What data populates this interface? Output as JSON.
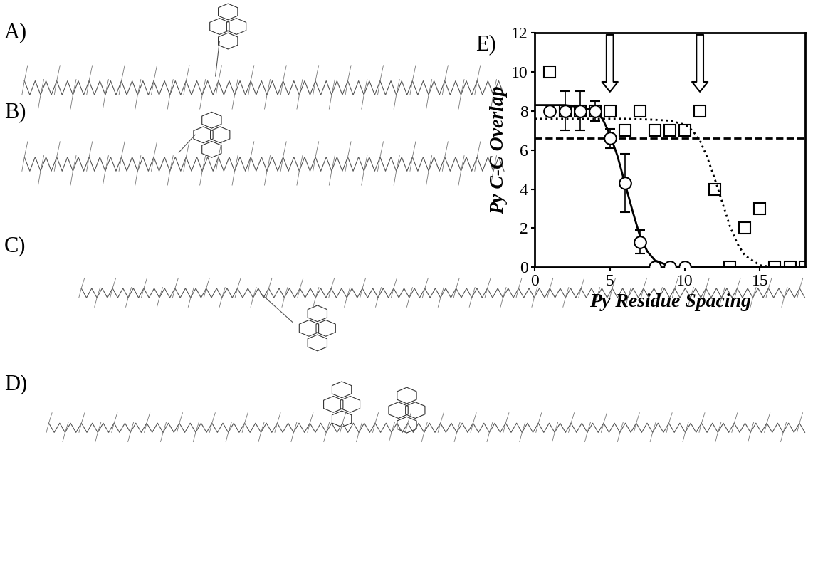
{
  "panel_labels": [
    "A)",
    "B)",
    "C)",
    "D)"
  ],
  "chart_data": {
    "type": "scatter",
    "title": "E)",
    "x_label": "Py Residue Spacing",
    "y_label": "Py C-C Overlap",
    "xlim": [
      0,
      18
    ],
    "xticks": [
      0,
      5,
      10,
      15
    ],
    "ylim": [
      0,
      12
    ],
    "yticks": [
      0,
      2,
      4,
      6,
      8,
      10,
      12
    ],
    "grid": false,
    "arrows_x": [
      5,
      11
    ],
    "series": [
      {
        "type": "scatter",
        "marker": "circle",
        "color": "#000000",
        "x": [
          1,
          2,
          3,
          4,
          5,
          6,
          7,
          8,
          9,
          10
        ],
        "values": [
          8,
          8,
          8,
          8,
          6.6,
          4.3,
          1.3,
          0,
          0,
          0
        ],
        "errors": [
          0,
          1,
          1,
          0.5,
          0.5,
          1.5,
          0.6,
          0,
          0,
          0
        ]
      },
      {
        "type": "scatter",
        "marker": "square",
        "color": "#000000",
        "x": [
          1,
          2,
          3,
          4,
          5,
          6,
          7,
          8,
          9,
          10,
          11,
          12,
          13,
          14,
          15,
          16,
          17,
          18
        ],
        "values": [
          10,
          8,
          8,
          8,
          8,
          7,
          8,
          7,
          7,
          7,
          8,
          4,
          0,
          2,
          3,
          0,
          0,
          0
        ]
      },
      {
        "type": "line",
        "line_style": "solid",
        "color": "#000000",
        "x": [
          0,
          1,
          2,
          3,
          4,
          4.5,
          5,
          5.5,
          6,
          6.5,
          7,
          7.5,
          8,
          9,
          10,
          12,
          14,
          16,
          18
        ],
        "values": [
          8.3,
          8.3,
          8.3,
          8.2,
          8.0,
          7.6,
          6.8,
          5.7,
          4.3,
          2.9,
          1.6,
          0.8,
          0.35,
          0.06,
          0.01,
          0,
          0,
          0,
          0
        ]
      },
      {
        "type": "line",
        "line_style": "dotted",
        "color": "#000000",
        "x": [
          0,
          2,
          4,
          6,
          8,
          9,
          10,
          10.5,
          11,
          11.5,
          12,
          12.5,
          13,
          13.5,
          14,
          15,
          16,
          18
        ],
        "values": [
          7.6,
          7.6,
          7.6,
          7.6,
          7.55,
          7.5,
          7.3,
          7.0,
          6.5,
          5.6,
          4.5,
          3.3,
          2.1,
          1.2,
          0.6,
          0.1,
          0,
          0
        ]
      },
      {
        "type": "line",
        "line_style": "dashed",
        "color": "#000000",
        "x": [
          0,
          18
        ],
        "values": [
          6.6,
          6.6
        ]
      }
    ]
  }
}
